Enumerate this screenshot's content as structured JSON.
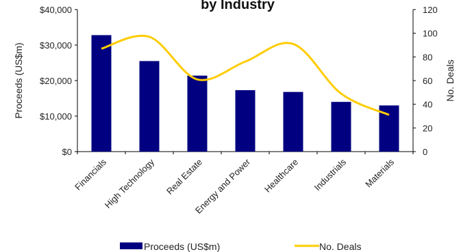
{
  "chart_data": {
    "type": "bar",
    "title": "by Industry",
    "categories": [
      "Financials",
      "High Technology",
      "Real Estate",
      "Energy and Power",
      "Healthcare",
      "Industrials",
      "Materials"
    ],
    "series": [
      {
        "name": "Proceeds (US$m)",
        "type": "bar",
        "axis": "left",
        "color": "#000080",
        "values": [
          32800,
          25500,
          21400,
          17300,
          16800,
          14000,
          13000
        ]
      },
      {
        "name": "No. Deals",
        "type": "line",
        "axis": "right",
        "color": "#FFCC00",
        "values": [
          87,
          97,
          61,
          76,
          91,
          49,
          31
        ]
      }
    ],
    "ylabel": "Proceeds (US$m)",
    "y2label": "No. Deals",
    "ylim": [
      0,
      40000
    ],
    "y2lim": [
      0,
      120
    ],
    "yticks": [
      "$0",
      "$10,000",
      "$20,000",
      "$30,000",
      "$40,000"
    ],
    "y2ticks": [
      "0",
      "20",
      "40",
      "60",
      "80",
      "100",
      "120"
    ],
    "grid": false,
    "legend": "bottom"
  }
}
